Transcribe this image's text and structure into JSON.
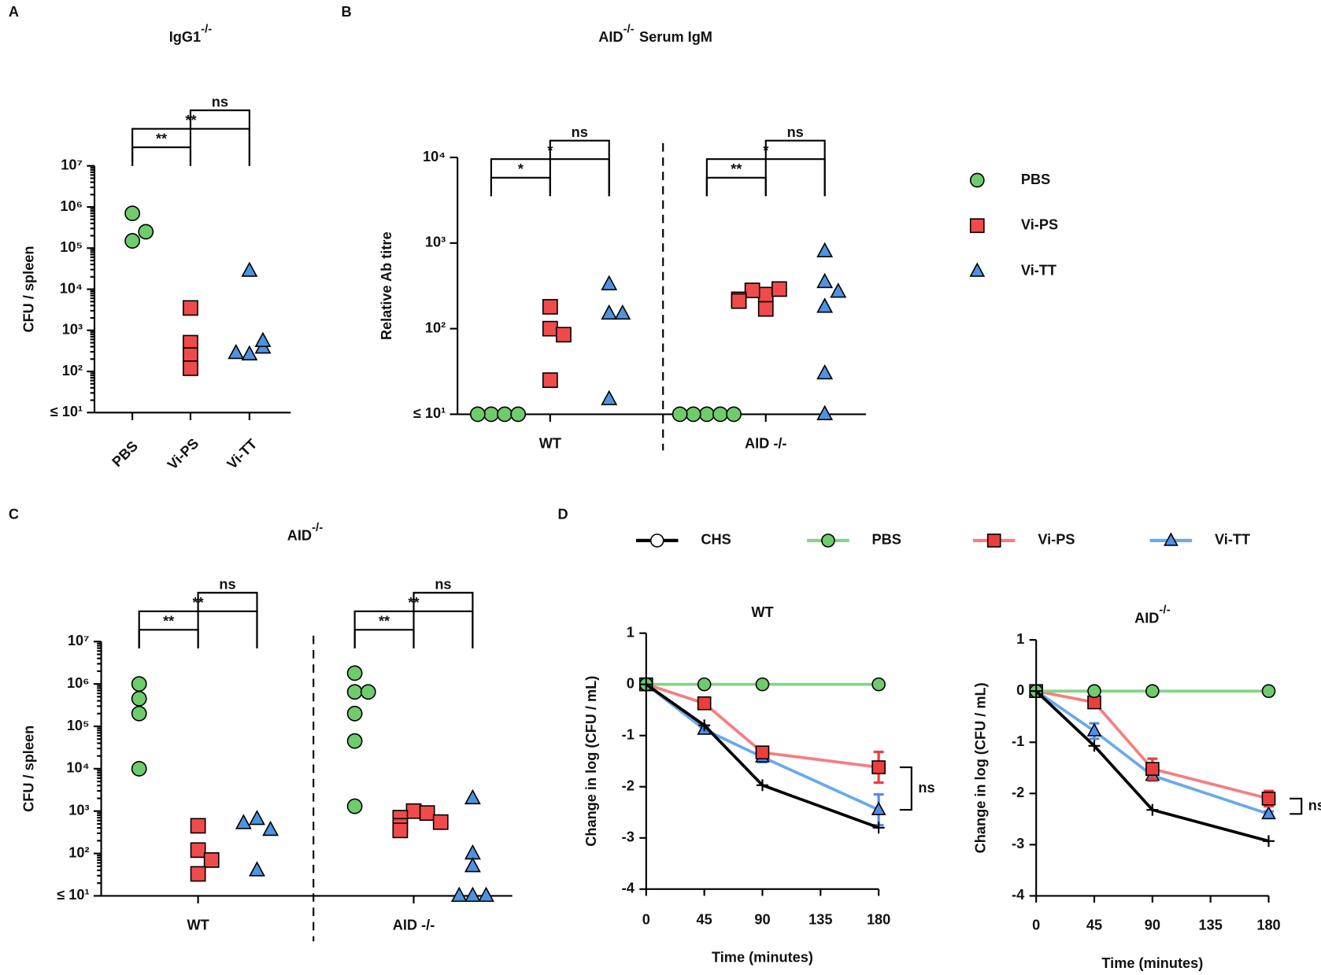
{
  "chart_data": [
    {
      "panel": "A",
      "type": "dotplot",
      "title": "IgG1",
      "title_sup": "-/-",
      "ylabel": "CFU / spleen",
      "categories": [
        "PBS",
        "Vi-PS",
        "Vi-TT"
      ],
      "colors": [
        "#6fcc6c",
        "#f04b4b",
        "#4f93e0"
      ],
      "markers": [
        "circle",
        "square",
        "triangle"
      ],
      "values": [
        [
          150000,
          700000,
          250000
        ],
        [
          3500,
          500,
          250,
          120
        ],
        [
          28000,
          260,
          380,
          550,
          280
        ]
      ],
      "log": true,
      "minor_ticks": true,
      "ylim": [
        10,
        10000000
      ],
      "yticks": [
        {
          "value": 10,
          "label": "≤ 10¹"
        },
        {
          "value": 100,
          "label": "10²"
        },
        {
          "value": 1000,
          "label": "10³"
        },
        {
          "value": 10000,
          "label": "10⁴"
        },
        {
          "value": 100000,
          "label": "10⁵"
        },
        {
          "value": 1000000,
          "label": "10⁶"
        },
        {
          "value": 10000000,
          "label": "10⁷"
        }
      ],
      "brackets": [
        {
          "between": [
            "PBS",
            "Vi-PS"
          ],
          "label": "**"
        },
        {
          "between": [
            "PBS",
            "Vi-TT"
          ],
          "label": "**"
        },
        {
          "between": [
            "Vi-PS",
            "Vi-TT"
          ],
          "label": "ns"
        }
      ]
    },
    {
      "panel": "B",
      "type": "grouped_dotplot",
      "title": "AID",
      "title_sup": "-/-",
      "title_after": "Serum IgM",
      "ylabel": "Relative Ab titre",
      "categories": [
        "WT",
        "AID -/-"
      ],
      "log": true,
      "minor_ticks": false,
      "ylim": [
        10,
        10000
      ],
      "legend": true,
      "yticks": [
        {
          "value": 10,
          "label": "≤ 10¹"
        },
        {
          "value": 100,
          "label": "10²"
        },
        {
          "value": 1000,
          "label": "10³"
        },
        {
          "value": 10000,
          "label": "10⁴"
        }
      ],
      "series": [
        {
          "name": "PBS",
          "color": "#6fcc6c",
          "marker": "circle",
          "values": [
            [
              10,
              10,
              10,
              10
            ],
            [
              10,
              10,
              10,
              10,
              10
            ]
          ]
        },
        {
          "name": "Vi-PS",
          "color": "#f04b4b",
          "marker": "square",
          "values": [
            [
              100,
              180,
              85,
              25
            ],
            [
              250,
              290,
              280,
              170,
              220,
              210
            ]
          ]
        },
        {
          "name": "Vi-TT",
          "color": "#4f93e0",
          "marker": "triangle",
          "values": [
            [
              330,
              150,
              150,
              15
            ],
            [
              800,
              350,
              270,
              180,
              30,
              10
            ]
          ]
        }
      ],
      "brackets": [
        {
          "group": "WT",
          "between": [
            "PBS",
            "Vi-PS"
          ],
          "label": "*"
        },
        {
          "group": "WT",
          "between": [
            "PBS",
            "Vi-TT"
          ],
          "label": "*"
        },
        {
          "group": "WT",
          "between": [
            "Vi-PS",
            "Vi-TT"
          ],
          "label": "ns"
        },
        {
          "group": "AID -/-",
          "between": [
            "PBS",
            "Vi-PS"
          ],
          "label": "**"
        },
        {
          "group": "AID -/-",
          "between": [
            "PBS",
            "Vi-TT"
          ],
          "label": "*"
        },
        {
          "group": "AID -/-",
          "between": [
            "Vi-PS",
            "Vi-TT"
          ],
          "label": "ns"
        }
      ]
    },
    {
      "panel": "C",
      "type": "grouped_dotplot",
      "title": "AID",
      "title_sup": "-/-",
      "ylabel": "CFU / spleen",
      "categories": [
        "WT",
        "AID -/-"
      ],
      "log": true,
      "minor_ticks": true,
      "ylim": [
        10,
        10000000
      ],
      "yticks": [
        {
          "value": 10,
          "label": "≤ 10¹"
        },
        {
          "value": 100,
          "label": "10²"
        },
        {
          "value": 1000,
          "label": "10³"
        },
        {
          "value": 10000,
          "label": "10⁴"
        },
        {
          "value": 100000,
          "label": "10⁵"
        },
        {
          "value": 1000000,
          "label": "10⁶"
        },
        {
          "value": 10000000,
          "label": "10⁷"
        }
      ],
      "series": [
        {
          "name": "PBS",
          "color": "#6fcc6c",
          "marker": "circle",
          "values": [
            [
              1000000,
              450000,
              200000,
              10000
            ],
            [
              1800000,
              650000,
              650000,
              200000,
              45000,
              1300
            ]
          ]
        },
        {
          "name": "Vi-PS",
          "color": "#f04b4b",
          "marker": "square",
          "values": [
            [
              450,
              120,
              70,
              33
            ],
            [
              1000,
              900,
              700,
              550,
              450,
              350
            ]
          ]
        },
        {
          "name": "Vi-TT",
          "color": "#4f93e0",
          "marker": "triangle",
          "values": [
            [
              650,
              360,
              520,
              40
            ],
            [
              2000,
              100,
              50,
              10,
              10,
              10
            ]
          ]
        }
      ],
      "brackets": [
        {
          "group": "WT",
          "between": [
            "PBS",
            "Vi-PS"
          ],
          "label": "**"
        },
        {
          "group": "WT",
          "between": [
            "PBS",
            "Vi-TT"
          ],
          "label": "**"
        },
        {
          "group": "WT",
          "between": [
            "Vi-PS",
            "Vi-TT"
          ],
          "label": "ns"
        },
        {
          "group": "AID -/-",
          "between": [
            "PBS",
            "Vi-PS"
          ],
          "label": "**"
        },
        {
          "group": "AID -/-",
          "between": [
            "PBS",
            "Vi-TT"
          ],
          "label": "**"
        },
        {
          "group": "AID -/-",
          "between": [
            "Vi-PS",
            "Vi-TT"
          ],
          "label": "ns"
        }
      ]
    },
    {
      "panel": "D",
      "type": "line",
      "title": "WT",
      "xlabel": "Time (minutes)",
      "ylabel": "Change in log (CFU / mL)",
      "legend": true,
      "x": [
        0,
        45,
        90,
        180
      ],
      "xlim": [
        0,
        180
      ],
      "xticks": [
        0,
        45,
        90,
        135,
        180
      ],
      "ylim": [
        -4,
        1
      ],
      "yticks": [
        -4,
        -3,
        -2,
        -1,
        0,
        1
      ],
      "series": [
        {
          "name": "CHS",
          "color": "#000000",
          "marker": "plus",
          "legend_marker": "circle",
          "marker_color": "#ffffff",
          "values": [
            0,
            -0.8,
            -1.97,
            -2.8
          ]
        },
        {
          "name": "PBS",
          "color": "#86d386",
          "marker": "circle",
          "marker_color": "#6fcc6c",
          "values": [
            0,
            0,
            0,
            0
          ]
        },
        {
          "name": "Vi-PS",
          "color": "#f47f7f",
          "marker": "square",
          "marker_color": "#ee3d3d",
          "values": [
            0,
            -0.37,
            -1.33,
            -1.62
          ],
          "errors": [
            0,
            0.05,
            0.1,
            0.3
          ]
        },
        {
          "name": "Vi-TT",
          "color": "#6aa9ec",
          "marker": "triangle",
          "marker_color": "#4f8fe6",
          "values": [
            0,
            -0.88,
            -1.42,
            -2.45
          ],
          "errors": [
            0,
            0.05,
            0.1,
            0.3
          ]
        }
      ],
      "bracket": {
        "between": [
          "Vi-PS",
          "Vi-TT"
        ],
        "label": "ns"
      }
    },
    {
      "type": "line",
      "title": "AID",
      "title_sup": "-/-",
      "xlabel": "Time (minutes)",
      "ylabel": "Change in log (CFU / mL)",
      "x": [
        0,
        45,
        90,
        180
      ],
      "xlim": [
        0,
        180
      ],
      "xticks": [
        0,
        45,
        90,
        135,
        180
      ],
      "ylim": [
        -4,
        1
      ],
      "yticks": [
        -4,
        -3,
        -2,
        -1,
        0,
        1
      ],
      "series": [
        {
          "name": "CHS",
          "color": "#000000",
          "marker": "plus",
          "marker_color": "#ffffff",
          "values": [
            0,
            -1.07,
            -2.32,
            -2.93
          ]
        },
        {
          "name": "PBS",
          "color": "#86d386",
          "marker": "circle",
          "marker_color": "#6fcc6c",
          "values": [
            0,
            0,
            0,
            0
          ]
        },
        {
          "name": "Vi-PS",
          "color": "#f47f7f",
          "marker": "square",
          "marker_color": "#ee3d3d",
          "values": [
            0,
            -0.22,
            -1.52,
            -2.1
          ],
          "errors": [
            0,
            0.05,
            0.2,
            0.15
          ]
        },
        {
          "name": "Vi-TT",
          "color": "#6aa9ec",
          "marker": "triangle",
          "marker_color": "#4f8fe6",
          "values": [
            0,
            -0.78,
            -1.65,
            -2.4
          ],
          "errors": [
            0,
            0.15,
            0.1,
            0.05
          ]
        }
      ],
      "bracket": {
        "between": [
          "Vi-PS",
          "Vi-TT"
        ],
        "label": "ns"
      }
    }
  ]
}
